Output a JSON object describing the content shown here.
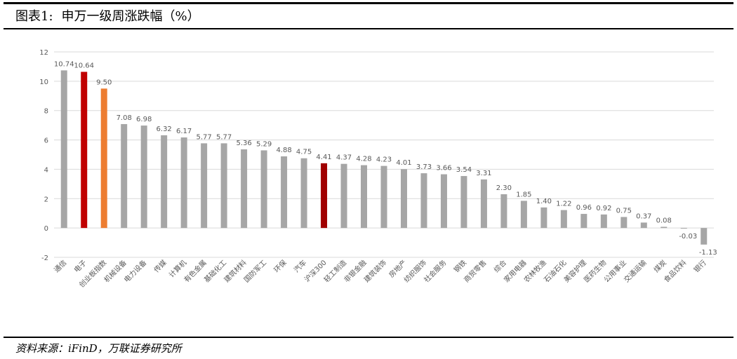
{
  "figure": {
    "label": "图表1:",
    "title": "申万一级周涨跌幅（%）",
    "source": "资料来源：iFinD，万联证券研究所"
  },
  "colors": {
    "default": "#a6a6a6",
    "highlight_red": "#c00000",
    "highlight_orange": "#ed7d31",
    "highlight_darkred": "#a00000",
    "grid": "#d9d9d9",
    "axis_text": "#595959"
  },
  "chart_data": {
    "type": "bar",
    "title": "",
    "xlabel": "",
    "ylabel": "",
    "ylim": [
      -2,
      12
    ],
    "yticks": [
      -2,
      0,
      2,
      4,
      6,
      8,
      10,
      12
    ],
    "grid": true,
    "categories": [
      "通信",
      "电子",
      "创业板指数",
      "机械设备",
      "电力设备",
      "传媒",
      "计算机",
      "有色金属",
      "基础化工",
      "建筑材料",
      "国防军工",
      "环保",
      "汽车",
      "沪深300",
      "轻工制造",
      "非银金融",
      "建筑装饰",
      "房地产",
      "纺织服饰",
      "社会服务",
      "钢铁",
      "商贸零售",
      "综合",
      "家用电器",
      "农林牧渔",
      "石油石化",
      "美容护理",
      "医药生物",
      "公用事业",
      "交通运输",
      "煤炭",
      "食品饮料",
      "银行"
    ],
    "values": [
      10.74,
      10.64,
      9.5,
      7.08,
      6.98,
      6.32,
      6.17,
      5.77,
      5.77,
      5.36,
      5.29,
      4.88,
      4.75,
      4.41,
      4.37,
      4.28,
      4.23,
      4.01,
      3.73,
      3.66,
      3.54,
      3.31,
      2.3,
      1.85,
      1.4,
      1.22,
      0.96,
      0.92,
      0.75,
      0.37,
      0.08,
      -0.03,
      -1.13
    ],
    "value_labels": [
      "10.74",
      "10.64",
      "9.50",
      "7.08",
      "6.98",
      "6.32",
      "6.17",
      "5.77",
      "5.77",
      "5.36",
      "5.29",
      "4.88",
      "4.75",
      "4.41",
      "4.37",
      "4.28",
      "4.23",
      "4.01",
      "3.73",
      "3.66",
      "3.54",
      "3.31",
      "2.30",
      "1.85",
      "1.40",
      "1.22",
      "0.96",
      "0.92",
      "0.75",
      "0.37",
      "0.08",
      "-0.03",
      "-1.13"
    ],
    "bar_colors": [
      "default",
      "highlight_red",
      "highlight_orange",
      "default",
      "default",
      "default",
      "default",
      "default",
      "default",
      "default",
      "default",
      "default",
      "default",
      "highlight_darkred",
      "default",
      "default",
      "default",
      "default",
      "default",
      "default",
      "default",
      "default",
      "default",
      "default",
      "default",
      "default",
      "default",
      "default",
      "default",
      "default",
      "default",
      "default",
      "default"
    ]
  }
}
